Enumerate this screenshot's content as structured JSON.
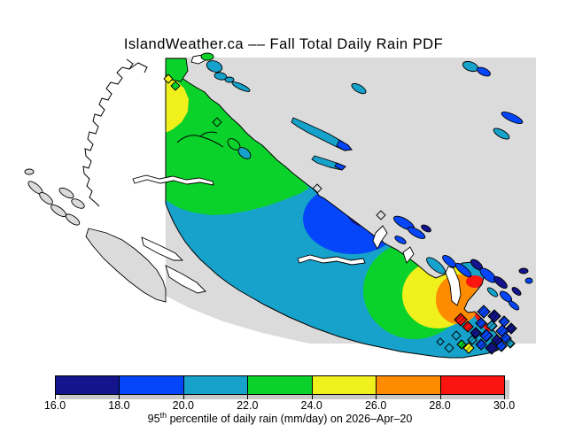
{
  "title": "IslandWeather.ca –– Fall Total Daily Rain PDF",
  "map": {
    "description": "Vancouver Island filled rain-contour map",
    "colors": {
      "no_data_gray": "#DBDBDB",
      "sea_white": "#FFFFFF",
      "coastline_black": "#000000"
    }
  },
  "colorbar": {
    "tick_labels": [
      "16.0",
      "18.0",
      "20.0",
      "22.0",
      "24.0",
      "26.0",
      "28.0",
      "30.0"
    ],
    "segment_colors": [
      "#14148C",
      "#0546FA",
      "#16A2CA",
      "#0BD22B",
      "#F0F01C",
      "#FF8C00",
      "#FB1410"
    ],
    "shadow_color": "#C9C9C9",
    "caption_base": "95",
    "caption_sup": "th",
    "caption_rest": " percentile of daily rain (mm/day) on 2026–Apr–20"
  },
  "scale": {
    "min": 16.0,
    "max": 30.0,
    "step": 2.0,
    "units": "mm/day"
  }
}
